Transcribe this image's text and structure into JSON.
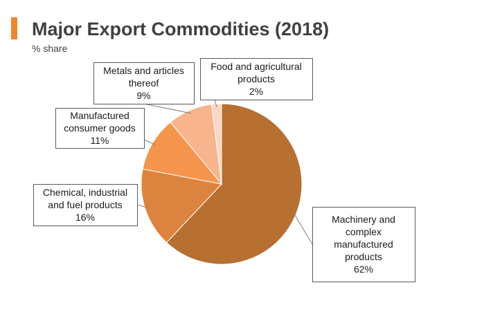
{
  "header": {
    "title": "Major Export Commodities (2018)",
    "subtitle": "% share",
    "accent_color": "#f0872a"
  },
  "chart_data": {
    "type": "pie",
    "title": "Major Export Commodities (2018)",
    "subtitle": "% share",
    "legend": "none",
    "slices": [
      {
        "label": "Machinery and complex manufactured products",
        "label_lines": [
          "Machinery and",
          "complex",
          "manufactured",
          "products"
        ],
        "value": 62,
        "value_label": "62%",
        "color": "#b86f32"
      },
      {
        "label": "Chemical, industrial and fuel products",
        "label_lines": [
          "Chemical, industrial",
          "and fuel products"
        ],
        "value": 16,
        "value_label": "16%",
        "color": "#dc843f"
      },
      {
        "label": "Manufactured consumer goods",
        "label_lines": [
          "Manufactured",
          "consumer goods"
        ],
        "value": 11,
        "value_label": "11%",
        "color": "#f5944c"
      },
      {
        "label": "Metals and articles thereof",
        "label_lines": [
          "Metals and articles",
          "thereof"
        ],
        "value": 9,
        "value_label": "9%",
        "color": "#f7b48d"
      },
      {
        "label": "Food and agricultural products",
        "label_lines": [
          "Food and agricultural",
          "products"
        ],
        "value": 2,
        "value_label": "2%",
        "color": "#fbd6c4"
      }
    ]
  }
}
